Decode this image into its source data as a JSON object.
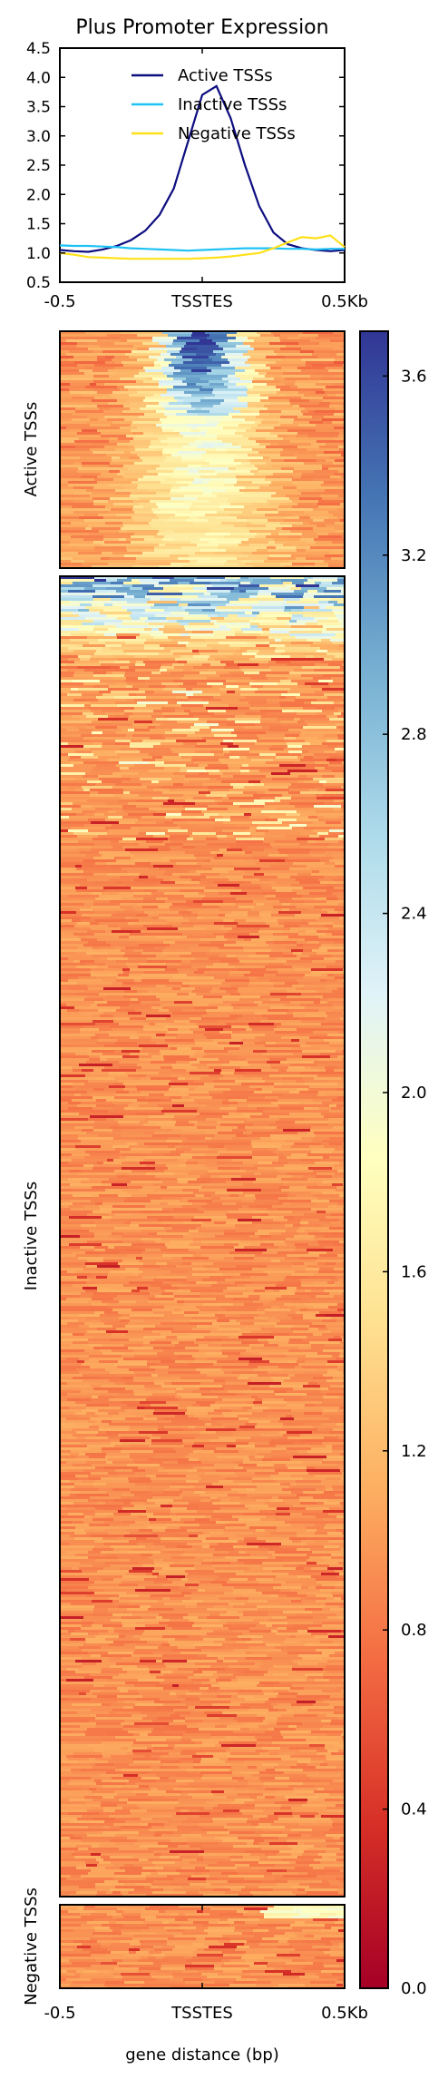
{
  "title": "Plus Promoter Expression",
  "xlabel": "gene distance (bp)",
  "x_ticks": [
    "-0.5",
    "TSSTES",
    "0.5Kb"
  ],
  "profile_y_ticks": [
    "0.5",
    "1.0",
    "1.5",
    "2.0",
    "2.5",
    "3.0",
    "3.5",
    "4.0",
    "4.5"
  ],
  "group_labels": [
    "Active TSSs",
    "Inactive TSSs",
    "Negative TSSs"
  ],
  "legend": [
    "Active TSSs",
    "Inactive TSSs",
    "Negative TSSs"
  ],
  "colorbar_ticks": [
    "0.0",
    "0.4",
    "0.8",
    "1.2",
    "1.6",
    "2.0",
    "2.4",
    "2.8",
    "3.2",
    "3.6"
  ],
  "colors": {
    "active": "#0d0d80",
    "inactive": "#1fc2f5",
    "negative": "#ffe11a",
    "colormap": [
      "#a50026",
      "#d73027",
      "#f46d43",
      "#fdae61",
      "#fee090",
      "#ffffbf",
      "#e0f3f8",
      "#abd9e9",
      "#74add1",
      "#4575b4",
      "#313695"
    ]
  },
  "chart_data": [
    {
      "type": "line",
      "title": "Plus Promoter Expression",
      "xlabel": "",
      "ylabel": "",
      "x_range": [
        -0.5,
        0.5
      ],
      "ylim": [
        0.5,
        4.5
      ],
      "x": [
        -0.5,
        -0.45,
        -0.4,
        -0.35,
        -0.3,
        -0.25,
        -0.2,
        -0.15,
        -0.1,
        -0.05,
        0.0,
        0.05,
        0.1,
        0.15,
        0.2,
        0.25,
        0.3,
        0.35,
        0.4,
        0.45,
        0.5
      ],
      "series": [
        {
          "name": "Active TSSs",
          "values": [
            1.05,
            1.03,
            1.02,
            1.06,
            1.12,
            1.22,
            1.38,
            1.65,
            2.1,
            2.9,
            3.7,
            3.85,
            3.3,
            2.5,
            1.8,
            1.35,
            1.15,
            1.08,
            1.05,
            1.03,
            1.05
          ]
        },
        {
          "name": "Inactive TSSs",
          "values": [
            1.13,
            1.12,
            1.12,
            1.11,
            1.1,
            1.08,
            1.07,
            1.06,
            1.05,
            1.04,
            1.05,
            1.06,
            1.07,
            1.08,
            1.08,
            1.08,
            1.07,
            1.07,
            1.06,
            1.07,
            1.07
          ]
        },
        {
          "name": "Negative TSSs",
          "values": [
            1.0,
            0.97,
            0.93,
            0.92,
            0.91,
            0.9,
            0.9,
            0.9,
            0.9,
            0.9,
            0.91,
            0.92,
            0.94,
            0.97,
            1.0,
            1.08,
            1.18,
            1.27,
            1.25,
            1.3,
            1.1
          ]
        }
      ],
      "legend_position": "top-center",
      "grid": false
    },
    {
      "type": "heatmap",
      "xlabel": "gene distance (bp)",
      "groups": [
        "Active TSSs",
        "Inactive TSSs",
        "Negative TSSs"
      ],
      "colorbar_range": [
        0.0,
        3.7
      ],
      "colormap": "RdYlBu"
    }
  ]
}
